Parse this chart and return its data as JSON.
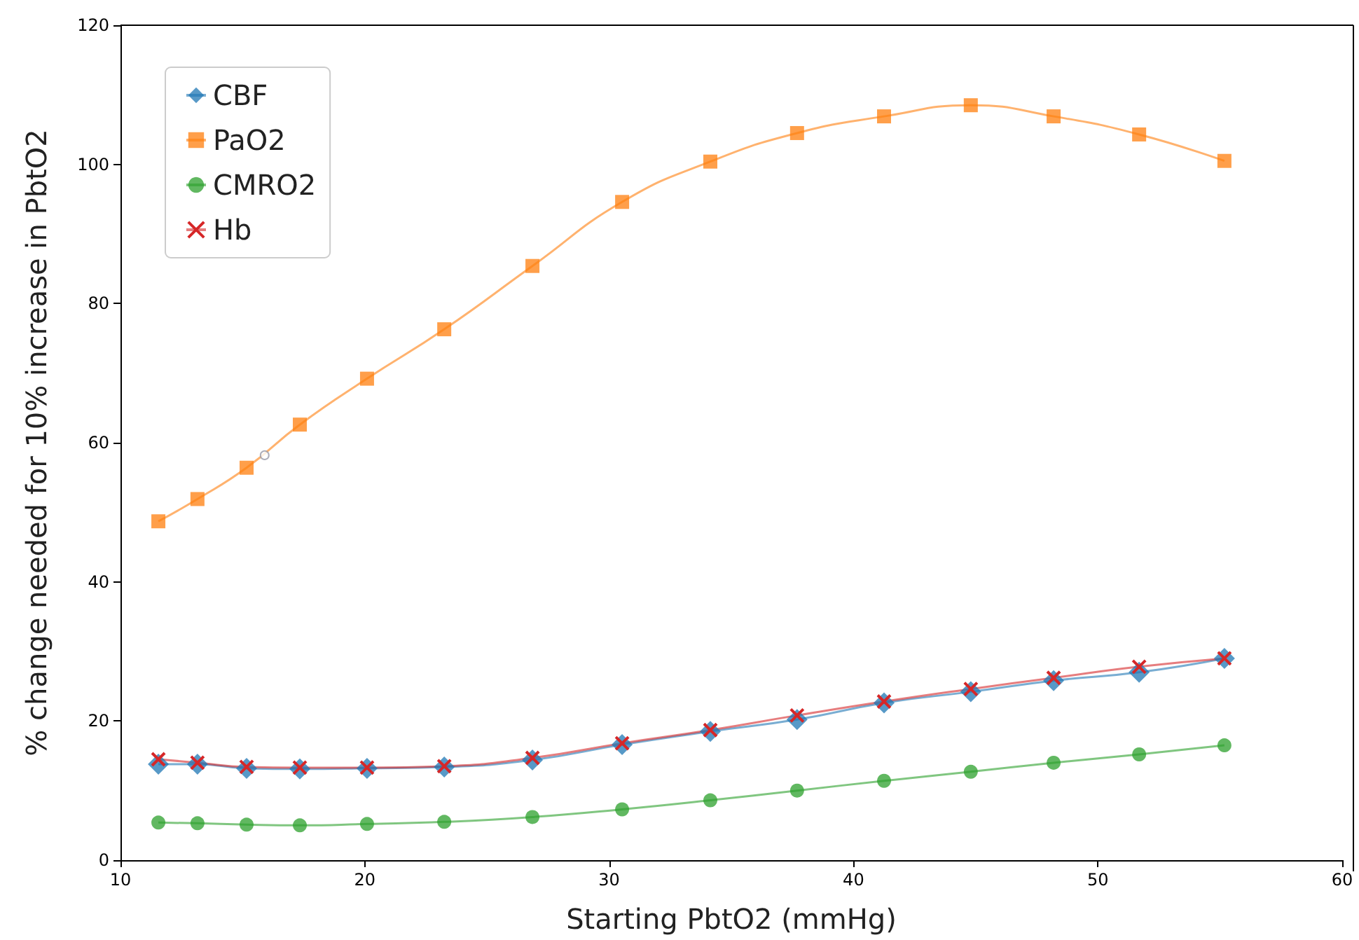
{
  "chart_data": {
    "type": "line",
    "xlabel": "Starting PbtO2 (mmHg)",
    "ylabel": "% change needed for 10% increase in PbtO2",
    "x": [
      11.55,
      13.15,
      15.16,
      17.34,
      20.09,
      23.25,
      26.86,
      30.53,
      34.14,
      37.69,
      41.25,
      44.8,
      48.19,
      51.69,
      55.18
    ],
    "series": [
      {
        "name": "CBF",
        "color": "#1f77b4",
        "marker": "diamond",
        "values": [
          13.8,
          13.8,
          13.2,
          13.1,
          13.2,
          13.4,
          14.4,
          16.6,
          18.5,
          20.2,
          22.6,
          24.2,
          25.8,
          27.0,
          29.0
        ]
      },
      {
        "name": "PaO2",
        "color": "#ff7f0e",
        "marker": "square",
        "values": [
          48.7,
          51.9,
          56.4,
          62.6,
          69.2,
          76.3,
          85.4,
          94.6,
          100.4,
          104.5,
          106.9,
          108.5,
          106.9,
          104.3,
          100.5
        ]
      },
      {
        "name": "CMRO2",
        "color": "#2ca02c",
        "marker": "circle",
        "values": [
          5.4,
          5.3,
          5.1,
          5.0,
          5.2,
          5.5,
          6.2,
          7.3,
          8.6,
          10.0,
          11.4,
          12.7,
          14.0,
          15.2,
          16.5
        ]
      },
      {
        "name": "Hb",
        "color": "#d62728",
        "marker": "cross",
        "values": [
          14.5,
          14.0,
          13.4,
          13.3,
          13.3,
          13.5,
          14.7,
          16.8,
          18.7,
          20.8,
          22.8,
          24.6,
          26.2,
          27.8,
          29.0
        ]
      },
      {
        "type": "scatter",
        "color": "#9a9aa8",
        "marker": "circle",
        "x": [
          15.9
        ],
        "values": [
          58.2
        ]
      }
    ],
    "xlim": [
      10,
      60
    ],
    "xticks": [
      10,
      20,
      30,
      40,
      50,
      60
    ],
    "ylim": [
      0,
      120
    ],
    "yticks": [
      0,
      20,
      40,
      60,
      80,
      100,
      120
    ],
    "grid": false,
    "legend": "top left"
  }
}
